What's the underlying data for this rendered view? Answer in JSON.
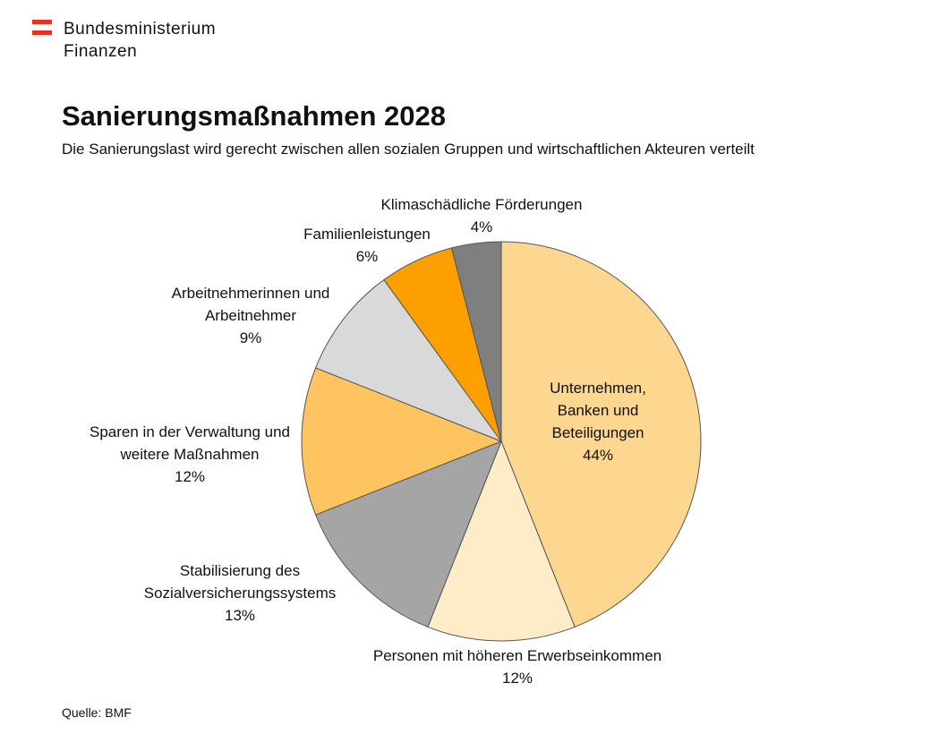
{
  "header": {
    "logo_lines": [
      "Bundesministerium",
      "Finanzen"
    ]
  },
  "chart_data": {
    "type": "pie",
    "title": "Sanierungsmaßnahmen 2028",
    "subtitle": "Die Sanierungslast wird gerecht zwischen allen sozialen Gruppen und wirtschaftlichen Akteuren verteilt",
    "categories": [
      "Unternehmen, Banken und Beteiligungen",
      "Personen mit höheren Erwerbseinkommen",
      "Stabilisierung des Sozialversicherungssystems",
      "Sparen in der Verwaltung und weitere Maßnahmen",
      "Arbeitnehmerinnen und Arbeitnehmer",
      "Familienleistungen",
      "Klimaschädliche Förderungen"
    ],
    "values": [
      44,
      12,
      13,
      12,
      9,
      6,
      4
    ],
    "value_labels": [
      "44%",
      "12%",
      "13%",
      "12%",
      "9%",
      "6%",
      "4%"
    ],
    "colors": [
      "#fdd68f",
      "#feebc8",
      "#a5a5a5",
      "#fec45f",
      "#d9d9d9",
      "#fe9f00",
      "#7f7f7f"
    ],
    "source": "Quelle: BMF"
  }
}
